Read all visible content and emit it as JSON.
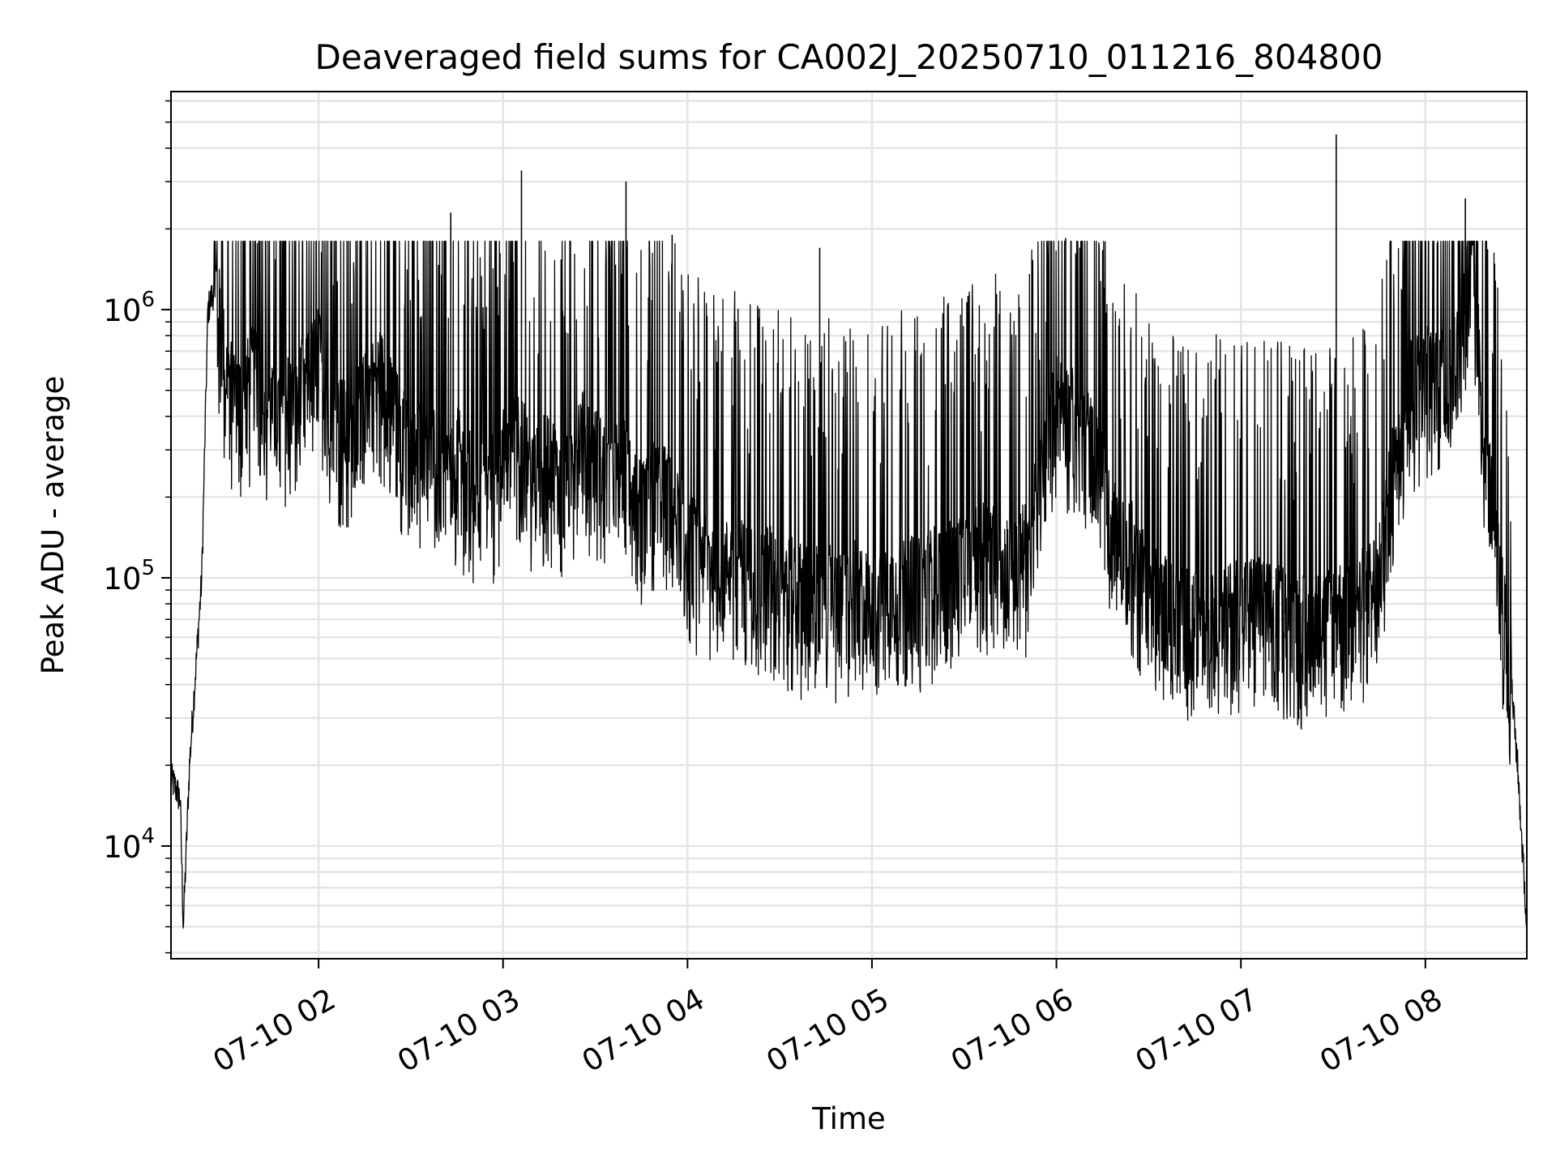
{
  "chart_data": {
    "type": "line",
    "title": "Deaveraged field sums for CA002J_20250710_011216_804800",
    "xlabel": "Time",
    "ylabel": "Peak ADU - average",
    "yscale": "log",
    "ylim": [
      3800,
      6500000
    ],
    "xlim": [
      "07-10 01:12",
      "07-10 08:33"
    ],
    "grid": true,
    "line_color": "#000000",
    "grid_color": "#e5e5e5",
    "x_ticks": [
      {
        "label": "07-10 02",
        "time": "07-10 02:00"
      },
      {
        "label": "07-10 03",
        "time": "07-10 03:00"
      },
      {
        "label": "07-10 04",
        "time": "07-10 04:00"
      },
      {
        "label": "07-10 05",
        "time": "07-10 05:00"
      },
      {
        "label": "07-10 06",
        "time": "07-10 06:00"
      },
      {
        "label": "07-10 07",
        "time": "07-10 07:00"
      },
      {
        "label": "07-10 08",
        "time": "07-10 08:00"
      }
    ],
    "y_ticks": [
      {
        "base": "10",
        "exp": "4",
        "value": 10000
      },
      {
        "base": "10",
        "exp": "5",
        "value": 100000
      },
      {
        "base": "10",
        "exp": "6",
        "value": 1000000
      }
    ],
    "series": [
      {
        "x": [
          "07-10 01:12",
          "07-10 01:14",
          "07-10 01:15",
          "07-10 01:16",
          "07-10 01:18",
          "07-10 01:20",
          "07-10 01:22",
          "07-10 01:24",
          "07-10 01:26",
          "07-10 01:30",
          "07-10 01:35",
          "07-10 01:40",
          "07-10 01:45",
          "07-10 01:50",
          "07-10 01:55",
          "07-10 02:00",
          "07-10 02:05",
          "07-10 02:10",
          "07-10 02:15",
          "07-10 02:20",
          "07-10 02:25",
          "07-10 02:30",
          "07-10 02:35",
          "07-10 02:40",
          "07-10 02:45",
          "07-10 02:50",
          "07-10 02:55",
          "07-10 03:00",
          "07-10 03:05",
          "07-10 03:10",
          "07-10 03:15",
          "07-10 03:20",
          "07-10 03:25",
          "07-10 03:30",
          "07-10 03:35",
          "07-10 03:40",
          "07-10 03:45",
          "07-10 03:50",
          "07-10 03:55",
          "07-10 04:00",
          "07-10 04:05",
          "07-10 04:10",
          "07-10 04:15",
          "07-10 04:20",
          "07-10 04:25",
          "07-10 04:30",
          "07-10 04:35",
          "07-10 04:40",
          "07-10 04:45",
          "07-10 04:50",
          "07-10 04:55",
          "07-10 05:00",
          "07-10 05:05",
          "07-10 05:10",
          "07-10 05:15",
          "07-10 05:20",
          "07-10 05:25",
          "07-10 05:30",
          "07-10 05:35",
          "07-10 05:40",
          "07-10 05:45",
          "07-10 05:50",
          "07-10 05:55",
          "07-10 06:00",
          "07-10 06:05",
          "07-10 06:10",
          "07-10 06:15",
          "07-10 06:20",
          "07-10 06:25",
          "07-10 06:30",
          "07-10 06:35",
          "07-10 06:40",
          "07-10 06:45",
          "07-10 06:50",
          "07-10 06:55",
          "07-10 07:00",
          "07-10 07:05",
          "07-10 07:10",
          "07-10 07:15",
          "07-10 07:20",
          "07-10 07:25",
          "07-10 07:30",
          "07-10 07:35",
          "07-10 07:40",
          "07-10 07:45",
          "07-10 07:50",
          "07-10 07:55",
          "07-10 08:00",
          "07-10 08:05",
          "07-10 08:10",
          "07-10 08:15",
          "07-10 08:20",
          "07-10 08:25",
          "07-10 08:28",
          "07-10 08:30",
          "07-10 08:33"
        ],
        "y": [
          18000,
          16000,
          15000,
          5000,
          20000,
          45000,
          100000,
          1000000,
          1200000,
          500000,
          400000,
          550000,
          350000,
          400000,
          450000,
          600000,
          350000,
          300000,
          400000,
          500000,
          350000,
          250000,
          300000,
          200000,
          250000,
          200000,
          180000,
          250000,
          300000,
          200000,
          250000,
          180000,
          300000,
          250000,
          200000,
          250000,
          150000,
          200000,
          160000,
          120000,
          110000,
          90000,
          100000,
          90000,
          95000,
          85000,
          80000,
          75000,
          80000,
          70000,
          80000,
          70000,
          75000,
          85000,
          80000,
          90000,
          95000,
          100000,
          110000,
          120000,
          100000,
          110000,
          200000,
          400000,
          350000,
          300000,
          200000,
          120000,
          110000,
          80000,
          70000,
          65000,
          60000,
          70000,
          65000,
          70000,
          70000,
          65000,
          65000,
          60000,
          60000,
          65000,
          70000,
          75000,
          90000,
          250000,
          450000,
          500000,
          550000,
          600000,
          1300000,
          250000,
          70000,
          40000,
          20000,
          5000
        ],
        "spikes": [
          {
            "x": "07-10 02:43",
            "y": 2300000
          },
          {
            "x": "07-10 03:06",
            "y": 3300000
          },
          {
            "x": "07-10 03:40",
            "y": 3000000
          },
          {
            "x": "07-10 03:55",
            "y": 1900000
          },
          {
            "x": "07-10 04:43",
            "y": 1700000
          },
          {
            "x": "07-10 06:03",
            "y": 1850000
          },
          {
            "x": "07-10 07:31",
            "y": 4500000
          },
          {
            "x": "07-10 08:13",
            "y": 2600000
          }
        ]
      }
    ]
  }
}
